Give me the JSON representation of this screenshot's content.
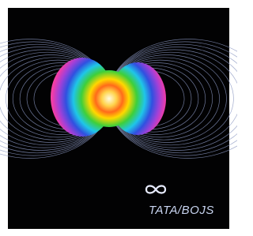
{
  "cover": {
    "artist": "TATA/BOJS"
  }
}
